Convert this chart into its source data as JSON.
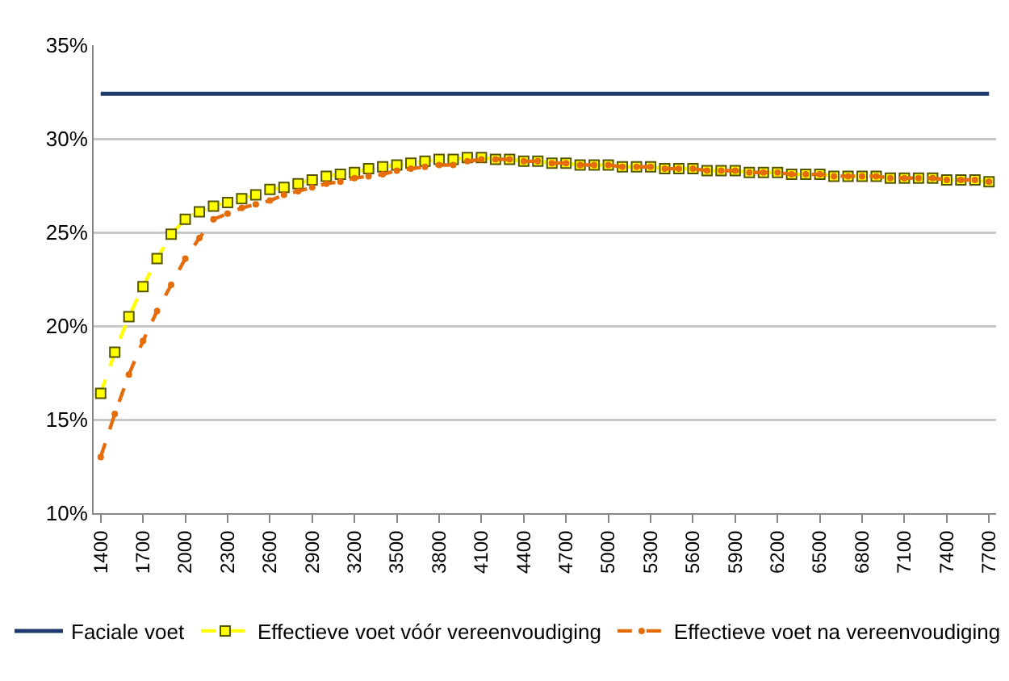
{
  "chart_data": {
    "type": "line",
    "x": [
      1400,
      1500,
      1600,
      1700,
      1800,
      1900,
      2000,
      2100,
      2200,
      2300,
      2400,
      2500,
      2600,
      2700,
      2800,
      2900,
      3000,
      3100,
      3200,
      3300,
      3400,
      3500,
      3600,
      3700,
      3800,
      3900,
      4000,
      4100,
      4200,
      4300,
      4400,
      4500,
      4600,
      4700,
      4800,
      4900,
      5000,
      5100,
      5200,
      5300,
      5400,
      5500,
      5600,
      5700,
      5800,
      5900,
      6000,
      6100,
      6200,
      6300,
      6400,
      6500,
      6600,
      6700,
      6800,
      6900,
      7000,
      7100,
      7200,
      7300,
      7400,
      7500,
      7600,
      7700
    ],
    "series": [
      {
        "name": "Faciale voet",
        "color": "#1f3a6e",
        "line_style": "solid",
        "marker": "none",
        "values": [
          32.4,
          32.4,
          32.4,
          32.4,
          32.4,
          32.4,
          32.4,
          32.4,
          32.4,
          32.4,
          32.4,
          32.4,
          32.4,
          32.4,
          32.4,
          32.4,
          32.4,
          32.4,
          32.4,
          32.4,
          32.4,
          32.4,
          32.4,
          32.4,
          32.4,
          32.4,
          32.4,
          32.4,
          32.4,
          32.4,
          32.4,
          32.4,
          32.4,
          32.4,
          32.4,
          32.4,
          32.4,
          32.4,
          32.4,
          32.4,
          32.4,
          32.4,
          32.4,
          32.4,
          32.4,
          32.4,
          32.4,
          32.4,
          32.4,
          32.4,
          32.4,
          32.4,
          32.4,
          32.4,
          32.4,
          32.4,
          32.4,
          32.4,
          32.4,
          32.4,
          32.4,
          32.4,
          32.4,
          32.4
        ]
      },
      {
        "name": "Effectieve voet vóór vereenvoudiging",
        "color": "#ffff00",
        "line_style": "dashed",
        "marker": "square",
        "values": [
          16.4,
          18.6,
          20.5,
          22.1,
          23.6,
          24.9,
          25.7,
          26.1,
          26.4,
          26.6,
          26.8,
          27.0,
          27.3,
          27.4,
          27.6,
          27.8,
          28.0,
          28.1,
          28.2,
          28.4,
          28.5,
          28.6,
          28.7,
          28.8,
          28.9,
          28.9,
          29.0,
          29.0,
          28.9,
          28.9,
          28.8,
          28.8,
          28.7,
          28.7,
          28.6,
          28.6,
          28.6,
          28.5,
          28.5,
          28.5,
          28.4,
          28.4,
          28.4,
          28.3,
          28.3,
          28.3,
          28.2,
          28.2,
          28.2,
          28.1,
          28.1,
          28.1,
          28.0,
          28.0,
          28.0,
          28.0,
          27.9,
          27.9,
          27.9,
          27.9,
          27.8,
          27.8,
          27.8,
          27.7
        ]
      },
      {
        "name": "Effectieve voet na vereenvoudiging",
        "color": "#e46c0a",
        "line_style": "dashed",
        "marker": "circle",
        "values": [
          13.0,
          15.3,
          17.4,
          19.2,
          20.8,
          22.2,
          23.6,
          24.7,
          25.7,
          26.0,
          26.3,
          26.5,
          26.7,
          27.0,
          27.2,
          27.4,
          27.6,
          27.7,
          27.9,
          28.0,
          28.1,
          28.3,
          28.4,
          28.5,
          28.6,
          28.6,
          28.8,
          28.9,
          28.9,
          28.9,
          28.8,
          28.8,
          28.7,
          28.7,
          28.6,
          28.6,
          28.6,
          28.5,
          28.5,
          28.5,
          28.4,
          28.4,
          28.4,
          28.3,
          28.3,
          28.3,
          28.2,
          28.2,
          28.2,
          28.1,
          28.1,
          28.1,
          28.0,
          28.0,
          28.0,
          28.0,
          27.9,
          27.9,
          27.9,
          27.9,
          27.8,
          27.8,
          27.8,
          27.7
        ]
      }
    ],
    "xlim": [
      1350,
      7750
    ],
    "xticks": [
      1400,
      1700,
      2000,
      2300,
      2600,
      2900,
      3200,
      3500,
      3800,
      4100,
      4400,
      4700,
      5000,
      5300,
      5600,
      5900,
      6200,
      6500,
      6800,
      7100,
      7400,
      7700
    ],
    "ylim": [
      10,
      35
    ],
    "yticks": [
      {
        "value": 10,
        "label": "10%"
      },
      {
        "value": 15,
        "label": "15%"
      },
      {
        "value": 20,
        "label": "20%"
      },
      {
        "value": 25,
        "label": "25%"
      },
      {
        "value": 30,
        "label": "30%"
      },
      {
        "value": 35,
        "label": "35%"
      }
    ],
    "grid": "y",
    "legend": "bottom"
  }
}
